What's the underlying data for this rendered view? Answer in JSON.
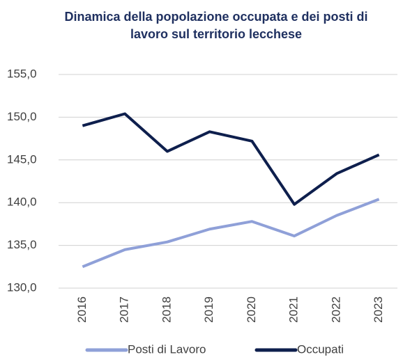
{
  "chart_data": {
    "type": "line",
    "title": "Dinamica della popolazione occupata e dei posti di lavoro sul territorio lecchese",
    "categories": [
      "2016",
      "2017",
      "2018",
      "2019",
      "2020",
      "2021",
      "2022",
      "2023"
    ],
    "series": [
      {
        "name": "Posti di Lavoro",
        "color": "#8fa0d8",
        "values": [
          132.5,
          134.5,
          135.4,
          136.9,
          137.8,
          136.1,
          138.5,
          140.4
        ]
      },
      {
        "name": "Occupati",
        "color": "#0e1f4d",
        "values": [
          149.0,
          150.4,
          146.0,
          148.3,
          147.2,
          139.8,
          143.4,
          145.6
        ]
      }
    ],
    "ylim": [
      130,
      155
    ],
    "yticks": [
      {
        "value": 130,
        "label": "130,0"
      },
      {
        "value": 135,
        "label": "135,0"
      },
      {
        "value": 140,
        "label": "140,0"
      },
      {
        "value": 145,
        "label": "145,0"
      },
      {
        "value": 150,
        "label": "150,0"
      },
      {
        "value": 155,
        "label": "155,0"
      }
    ],
    "grid": true,
    "legend": "bottom"
  }
}
